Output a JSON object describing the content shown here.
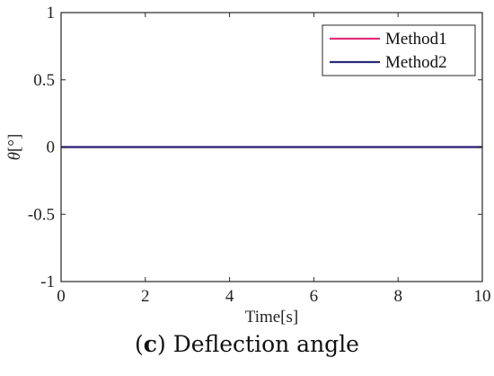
{
  "chart_data": {
    "type": "line",
    "title": "",
    "xlabel": "Time[s]",
    "ylabel_symbol": "θ",
    "ylabel_unit": "[°]",
    "xlim": [
      0,
      10
    ],
    "ylim": [
      -1,
      1
    ],
    "xticks": [
      0,
      2,
      4,
      6,
      8,
      10
    ],
    "xtick_labels": [
      "0",
      "2",
      "4",
      "6",
      "8",
      "10"
    ],
    "yticks": [
      -1,
      -0.5,
      0,
      0.5,
      1
    ],
    "ytick_labels": [
      "-1",
      "-0.5",
      "0",
      "0.5",
      "1"
    ],
    "grid": false,
    "legend_position": "top-right",
    "series": [
      {
        "name": "Method1",
        "color": "#e0327a",
        "x": [
          0,
          10
        ],
        "y": [
          0,
          0
        ]
      },
      {
        "name": "Method2",
        "color": "#2a2a7a",
        "x": [
          0,
          10
        ],
        "y": [
          0,
          0
        ]
      }
    ]
  },
  "caption": {
    "label": "c",
    "open": "(",
    "close": ")",
    "text": " Deflection angle"
  }
}
